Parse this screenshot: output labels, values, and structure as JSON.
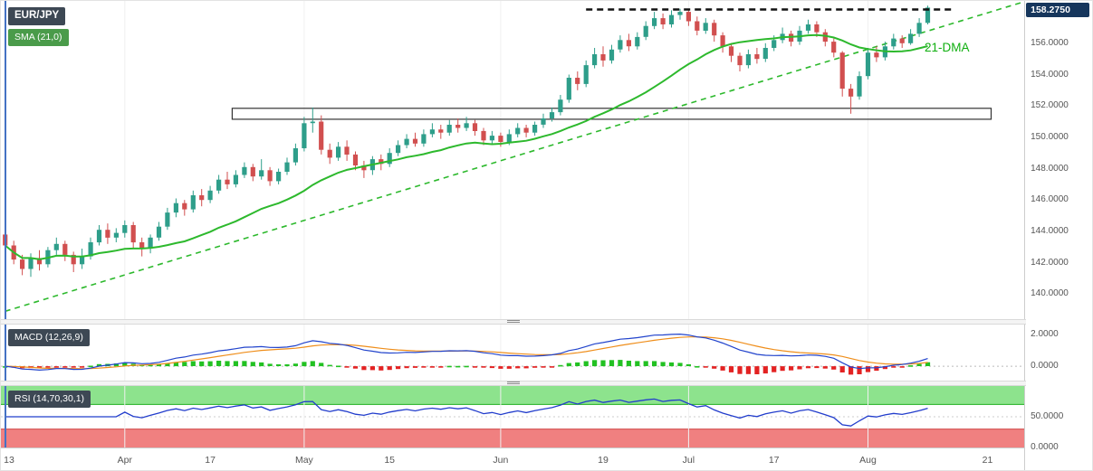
{
  "header": {
    "symbol": "EUR/JPY",
    "sma_label": "SMA (21,0)",
    "macd_label": "MACD (12,26,9)",
    "rsi_label": "RSI (14,70,30,1)",
    "dma_annotation": "21-DMA",
    "last_price_label": "158.2750"
  },
  "colors": {
    "candle_up": "#2e9e8a",
    "candle_down": "#d14f4f",
    "sma": "#2db92d",
    "trendline": "#2db92d",
    "resistance": "#111111",
    "box": "#333333",
    "macd_line": "#2244cc",
    "macd_signal": "#ef8e1b",
    "hist_up": "#22c122",
    "hist_down": "#e32222",
    "rsi_line": "#223dcc",
    "overbought_band": "#8de38d",
    "oversold_band": "#f08080",
    "overbought_edge": "#1faf1f",
    "oversold_edge": "#d04848",
    "badge_dark": "#3d4854",
    "badge_green": "#4a9b4a",
    "badge_price": "#16365c",
    "annotation_green": "#0faf0f",
    "accent_left": "#4472c4"
  },
  "chart_data": {
    "type": "candlestick",
    "title": "EUR/JPY",
    "x_axis": {
      "slots": 120,
      "gridline_indices": [
        14,
        35,
        58,
        80,
        101
      ],
      "ticks": [
        {
          "index": 0,
          "label": "13"
        },
        {
          "index": 14,
          "label": "Apr"
        },
        {
          "index": 24,
          "label": "17"
        },
        {
          "index": 35,
          "label": "May"
        },
        {
          "index": 45,
          "label": "15"
        },
        {
          "index": 58,
          "label": "Jun"
        },
        {
          "index": 70,
          "label": "19"
        },
        {
          "index": 80,
          "label": "Jul"
        },
        {
          "index": 90,
          "label": "17"
        },
        {
          "index": 101,
          "label": "Aug"
        },
        {
          "index": 115,
          "label": "21"
        }
      ]
    },
    "price_panel": {
      "ylim": [
        138.4,
        158.7
      ],
      "yticks": [
        156,
        154,
        152,
        150,
        148,
        146,
        144,
        142,
        140
      ],
      "last_price": 158.275,
      "sma_period": 21,
      "trendline": {
        "from_index": 0,
        "from_price": 138.9,
        "to_index": 119,
        "to_price": 158.6
      },
      "resistance_line": {
        "price": 158.15,
        "from_index": 68,
        "to_index": 111
      },
      "range_box": {
        "price_top": 151.85,
        "price_bottom": 151.15,
        "from_index": 27,
        "to_index": 115
      },
      "candles": [
        [
          143.8,
          144.3,
          142.9,
          143.1
        ],
        [
          143.1,
          143.4,
          141.9,
          142.2
        ],
        [
          142.2,
          142.5,
          141.2,
          141.6
        ],
        [
          141.6,
          142.6,
          141.1,
          142.3
        ],
        [
          142.3,
          142.8,
          141.5,
          141.9
        ],
        [
          141.9,
          143.0,
          141.7,
          142.8
        ],
        [
          142.8,
          143.6,
          142.5,
          143.2
        ],
        [
          143.2,
          143.4,
          142.1,
          142.5
        ],
        [
          142.5,
          142.7,
          141.4,
          141.9
        ],
        [
          141.9,
          142.9,
          141.6,
          142.4
        ],
        [
          142.4,
          143.6,
          142.2,
          143.3
        ],
        [
          143.3,
          144.4,
          143.1,
          144.1
        ],
        [
          144.1,
          144.5,
          143.2,
          143.6
        ],
        [
          143.6,
          144.2,
          143.3,
          143.9
        ],
        [
          143.9,
          144.7,
          143.6,
          144.4
        ],
        [
          144.4,
          144.6,
          142.9,
          143.3
        ],
        [
          143.3,
          143.6,
          142.4,
          142.9
        ],
        [
          142.9,
          143.8,
          142.6,
          143.6
        ],
        [
          143.6,
          144.6,
          143.4,
          144.3
        ],
        [
          144.3,
          145.5,
          144.1,
          145.2
        ],
        [
          145.2,
          146.1,
          144.9,
          145.8
        ],
        [
          145.8,
          146.0,
          145.0,
          145.4
        ],
        [
          145.4,
          146.6,
          145.2,
          146.3
        ],
        [
          146.3,
          146.7,
          145.6,
          146.0
        ],
        [
          146.0,
          146.9,
          145.8,
          146.6
        ],
        [
          146.6,
          147.6,
          146.4,
          147.3
        ],
        [
          147.3,
          147.8,
          146.7,
          147.0
        ],
        [
          147.0,
          147.9,
          146.8,
          147.6
        ],
        [
          147.6,
          148.4,
          147.4,
          148.1
        ],
        [
          148.1,
          148.3,
          147.2,
          147.5
        ],
        [
          147.5,
          148.6,
          147.3,
          147.9
        ],
        [
          147.9,
          148.1,
          146.9,
          147.2
        ],
        [
          147.2,
          148.0,
          147.0,
          147.8
        ],
        [
          147.8,
          148.7,
          147.6,
          148.4
        ],
        [
          148.4,
          149.6,
          148.2,
          149.3
        ],
        [
          149.3,
          151.3,
          149.1,
          150.9
        ],
        [
          150.9,
          151.9,
          150.3,
          151.0
        ],
        [
          151.0,
          151.4,
          148.9,
          149.2
        ],
        [
          149.2,
          149.6,
          148.3,
          148.7
        ],
        [
          148.7,
          149.7,
          148.5,
          149.4
        ],
        [
          149.4,
          149.8,
          148.5,
          148.9
        ],
        [
          148.9,
          149.1,
          147.9,
          148.2
        ],
        [
          148.2,
          148.5,
          147.4,
          147.9
        ],
        [
          147.9,
          148.8,
          147.6,
          148.6
        ],
        [
          148.6,
          148.9,
          147.9,
          148.3
        ],
        [
          148.3,
          149.3,
          148.1,
          149.0
        ],
        [
          149.0,
          149.8,
          148.8,
          149.5
        ],
        [
          149.5,
          150.2,
          149.3,
          149.9
        ],
        [
          149.9,
          150.3,
          149.4,
          149.6
        ],
        [
          149.6,
          150.5,
          149.4,
          150.2
        ],
        [
          150.2,
          150.9,
          150.0,
          150.5
        ],
        [
          150.5,
          150.8,
          149.9,
          150.3
        ],
        [
          150.3,
          151.1,
          150.1,
          150.8
        ],
        [
          150.8,
          151.2,
          150.3,
          150.6
        ],
        [
          150.6,
          151.3,
          150.4,
          150.9
        ],
        [
          150.9,
          151.1,
          150.1,
          150.4
        ],
        [
          150.4,
          150.6,
          149.5,
          149.8
        ],
        [
          149.8,
          150.4,
          149.6,
          150.1
        ],
        [
          150.1,
          150.3,
          149.4,
          149.7
        ],
        [
          149.7,
          150.5,
          149.5,
          150.2
        ],
        [
          150.2,
          150.9,
          150.0,
          150.6
        ],
        [
          150.6,
          150.8,
          150.0,
          150.3
        ],
        [
          150.3,
          151.0,
          150.1,
          150.8
        ],
        [
          150.8,
          151.5,
          150.6,
          151.2
        ],
        [
          151.2,
          151.9,
          151.0,
          151.6
        ],
        [
          151.6,
          152.7,
          151.4,
          152.4
        ],
        [
          152.4,
          154.0,
          152.2,
          153.8
        ],
        [
          153.8,
          154.2,
          153.0,
          153.4
        ],
        [
          153.4,
          154.9,
          153.2,
          154.6
        ],
        [
          154.6,
          155.7,
          154.4,
          155.3
        ],
        [
          155.3,
          155.8,
          154.5,
          154.9
        ],
        [
          154.9,
          155.9,
          154.7,
          155.6
        ],
        [
          155.6,
          156.5,
          155.4,
          156.2
        ],
        [
          156.2,
          156.6,
          155.5,
          155.8
        ],
        [
          155.8,
          156.7,
          155.6,
          156.4
        ],
        [
          156.4,
          157.4,
          156.2,
          157.1
        ],
        [
          157.1,
          158.0,
          156.9,
          157.6
        ],
        [
          157.6,
          157.9,
          156.9,
          157.2
        ],
        [
          157.2,
          158.1,
          157.0,
          157.8
        ],
        [
          157.8,
          158.2,
          157.5,
          158.0
        ],
        [
          158.0,
          158.2,
          157.1,
          157.4
        ],
        [
          157.4,
          157.7,
          156.5,
          156.8
        ],
        [
          156.8,
          157.6,
          156.6,
          157.3
        ],
        [
          157.3,
          157.5,
          156.1,
          156.5
        ],
        [
          156.5,
          156.7,
          155.4,
          155.8
        ],
        [
          155.8,
          156.0,
          154.8,
          155.2
        ],
        [
          155.2,
          155.4,
          154.2,
          154.6
        ],
        [
          154.6,
          155.6,
          154.4,
          155.3
        ],
        [
          155.3,
          155.7,
          154.7,
          155.0
        ],
        [
          155.0,
          156.0,
          154.8,
          155.7
        ],
        [
          155.7,
          156.5,
          155.5,
          156.2
        ],
        [
          156.2,
          157.0,
          156.0,
          156.6
        ],
        [
          156.6,
          156.8,
          155.8,
          156.1
        ],
        [
          156.1,
          157.1,
          155.9,
          156.8
        ],
        [
          156.8,
          157.5,
          156.6,
          157.2
        ],
        [
          157.2,
          157.4,
          156.4,
          156.7
        ],
        [
          156.7,
          156.9,
          155.8,
          156.1
        ],
        [
          156.1,
          156.3,
          155.1,
          155.4
        ],
        [
          155.4,
          155.5,
          152.6,
          153.1
        ],
        [
          153.1,
          153.4,
          151.5,
          152.6
        ],
        [
          152.6,
          154.2,
          152.4,
          153.9
        ],
        [
          153.9,
          155.7,
          153.7,
          155.4
        ],
        [
          155.4,
          155.8,
          154.8,
          155.1
        ],
        [
          155.1,
          156.1,
          154.9,
          155.8
        ],
        [
          155.8,
          156.6,
          155.6,
          156.3
        ],
        [
          156.3,
          156.5,
          155.7,
          156.0
        ],
        [
          156.0,
          156.9,
          155.9,
          156.6
        ],
        [
          156.6,
          157.6,
          156.4,
          157.3
        ],
        [
          157.3,
          158.4,
          157.2,
          158.275
        ]
      ]
    },
    "macd_panel": {
      "ylim": [
        -0.9,
        2.6
      ],
      "yticks": [
        2,
        0
      ],
      "params": [
        12,
        26,
        9
      ]
    },
    "rsi_panel": {
      "ylim": [
        0,
        100
      ],
      "yticks": [
        50,
        0
      ],
      "period": 14,
      "overbought": 70,
      "oversold": 30
    }
  }
}
